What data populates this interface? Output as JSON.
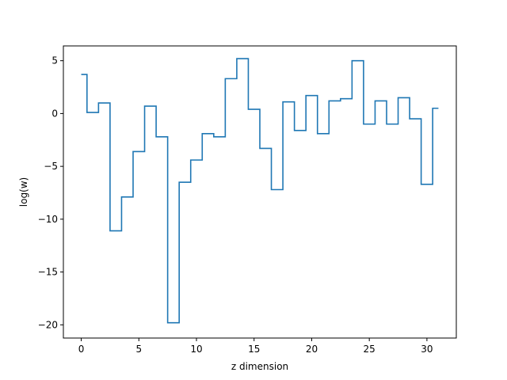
{
  "chart_data": {
    "type": "line",
    "drawstyle": "steps-mid",
    "title": "",
    "xlabel": "z dimension",
    "ylabel": "log(w)",
    "xlim": [
      -1.55,
      32.55
    ],
    "ylim": [
      -21.25,
      6.4
    ],
    "xticks": [
      0,
      5,
      10,
      15,
      20,
      25,
      30
    ],
    "yticks": [
      5,
      0,
      -5,
      -10,
      -15,
      -20
    ],
    "ytick_labels": [
      "5",
      "0",
      "−5",
      "−10",
      "−15",
      "−20"
    ],
    "grid": false,
    "line_color": "#1f77b4",
    "series": [
      {
        "name": "",
        "x": [
          0,
          1,
          2,
          3,
          4,
          5,
          6,
          7,
          8,
          9,
          10,
          11,
          12,
          13,
          14,
          15,
          16,
          17,
          18,
          19,
          20,
          21,
          22,
          23,
          24,
          25,
          26,
          27,
          28,
          29,
          30,
          31
        ],
        "values": [
          3.7,
          0.1,
          1.0,
          -11.1,
          -7.9,
          -3.6,
          0.7,
          -2.2,
          -19.8,
          -6.5,
          -4.4,
          -1.9,
          -2.2,
          3.3,
          5.2,
          0.4,
          -3.3,
          -7.2,
          1.1,
          -1.6,
          1.7,
          -1.9,
          1.2,
          1.4,
          5.0,
          -1.0,
          1.2,
          -1.0,
          1.5,
          -0.5,
          -6.7,
          0.5
        ]
      }
    ]
  }
}
